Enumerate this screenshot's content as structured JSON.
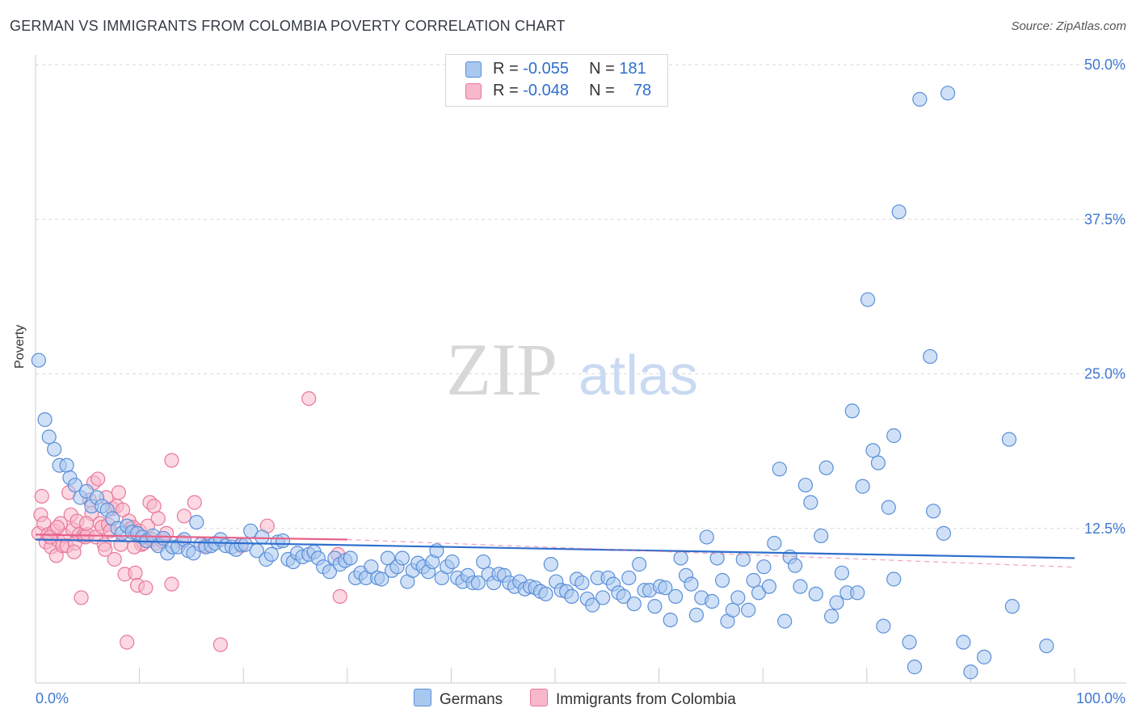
{
  "header": {
    "title": "GERMAN VS IMMIGRANTS FROM COLOMBIA POVERTY CORRELATION CHART",
    "source": "Source: ZipAtlas.com"
  },
  "watermark": {
    "zip": "ZIP",
    "atlas": "atlas"
  },
  "legend": {
    "items": [
      {
        "r_label": "R =",
        "r_value": "-0.055",
        "n_label": "N =",
        "n_value": "181"
      },
      {
        "r_label": "R =",
        "r_value": "-0.048",
        "n_label": "N =",
        "n_value": "78"
      }
    ]
  },
  "bottom_legend": {
    "germans": "Germans",
    "colombia": "Immigrants from Colombia"
  },
  "colors": {
    "germans_fill": "#a9c8f0",
    "germans_stroke": "#5b8fd8",
    "germans_line": "#2f6fcd",
    "colombia_fill": "#f7b8cb",
    "colombia_stroke": "#e8789a",
    "colombia_line": "#e8628a",
    "axis_label": "#3f78d1",
    "grid": "#d9d9d9"
  },
  "chart_data": {
    "type": "scatter",
    "title": "GERMAN VS IMMIGRANTS FROM COLOMBIA POVERTY CORRELATION CHART",
    "xlabel": "",
    "ylabel": "Poverty",
    "xlim": [
      0,
      100
    ],
    "ylim": [
      0,
      50
    ],
    "x_ticks": [
      "0.0%",
      "100.0%"
    ],
    "y_ticks": [
      {
        "value": 12.5,
        "label": "12.5%"
      },
      {
        "value": 25.0,
        "label": "25.0%"
      },
      {
        "value": 37.5,
        "label": "37.5%"
      },
      {
        "value": 50.0,
        "label": "50.0%"
      }
    ],
    "grid": "horizontal dashed",
    "series": [
      {
        "name": "Germans",
        "r": -0.055,
        "n": 181,
        "trend": {
          "x": [
            0,
            100
          ],
          "y": [
            11.6,
            10.1
          ]
        },
        "points": [
          [
            0.3,
            26.1
          ],
          [
            0.9,
            21.3
          ],
          [
            1.3,
            19.9
          ],
          [
            1.8,
            18.9
          ],
          [
            2.3,
            17.6
          ],
          [
            3.0,
            17.6
          ],
          [
            3.3,
            16.6
          ],
          [
            3.8,
            16.0
          ],
          [
            4.3,
            15.0
          ],
          [
            4.9,
            15.5
          ],
          [
            5.4,
            14.3
          ],
          [
            5.9,
            15.0
          ],
          [
            6.4,
            14.3
          ],
          [
            6.9,
            14.0
          ],
          [
            7.4,
            13.3
          ],
          [
            7.9,
            12.5
          ],
          [
            8.3,
            12.1
          ],
          [
            8.8,
            12.7
          ],
          [
            9.3,
            12.2
          ],
          [
            9.8,
            12.1
          ],
          [
            10.3,
            11.8
          ],
          [
            10.7,
            11.5
          ],
          [
            11.3,
            11.9
          ],
          [
            11.8,
            11.1
          ],
          [
            12.3,
            11.7
          ],
          [
            12.7,
            10.5
          ],
          [
            13.2,
            11.0
          ],
          [
            13.7,
            11.0
          ],
          [
            14.3,
            11.6
          ],
          [
            14.7,
            10.7
          ],
          [
            15.2,
            10.5
          ],
          [
            15.5,
            13.0
          ],
          [
            15.9,
            11.2
          ],
          [
            16.4,
            11.0
          ],
          [
            16.9,
            11.1
          ],
          [
            17.3,
            11.3
          ],
          [
            17.8,
            11.6
          ],
          [
            18.3,
            11.1
          ],
          [
            18.9,
            11.0
          ],
          [
            19.3,
            10.8
          ],
          [
            19.8,
            11.2
          ],
          [
            20.2,
            11.2
          ],
          [
            20.7,
            12.3
          ],
          [
            21.3,
            10.7
          ],
          [
            21.8,
            11.8
          ],
          [
            22.2,
            10.0
          ],
          [
            22.7,
            10.4
          ],
          [
            23.3,
            11.4
          ],
          [
            23.8,
            11.5
          ],
          [
            24.3,
            10.0
          ],
          [
            24.8,
            9.8
          ],
          [
            25.2,
            10.5
          ],
          [
            25.7,
            10.2
          ],
          [
            26.3,
            10.4
          ],
          [
            26.8,
            10.6
          ],
          [
            27.2,
            10.1
          ],
          [
            27.7,
            9.4
          ],
          [
            28.3,
            9.0
          ],
          [
            28.8,
            10.1
          ],
          [
            29.3,
            9.6
          ],
          [
            29.8,
            9.9
          ],
          [
            30.3,
            10.1
          ],
          [
            30.8,
            8.5
          ],
          [
            31.3,
            8.9
          ],
          [
            31.8,
            8.5
          ],
          [
            32.3,
            9.4
          ],
          [
            32.9,
            8.5
          ],
          [
            33.3,
            8.4
          ],
          [
            33.9,
            10.1
          ],
          [
            34.3,
            9.1
          ],
          [
            34.8,
            9.4
          ],
          [
            35.3,
            10.1
          ],
          [
            35.8,
            8.2
          ],
          [
            36.3,
            9.1
          ],
          [
            36.8,
            9.7
          ],
          [
            37.3,
            9.4
          ],
          [
            37.8,
            9.0
          ],
          [
            38.2,
            9.8
          ],
          [
            38.6,
            10.7
          ],
          [
            39.1,
            8.5
          ],
          [
            39.6,
            9.4
          ],
          [
            40.1,
            9.8
          ],
          [
            40.6,
            8.5
          ],
          [
            41.1,
            8.2
          ],
          [
            41.6,
            8.7
          ],
          [
            42.1,
            8.1
          ],
          [
            42.6,
            8.1
          ],
          [
            43.1,
            9.8
          ],
          [
            43.6,
            8.8
          ],
          [
            44.1,
            8.1
          ],
          [
            44.6,
            8.8
          ],
          [
            45.1,
            8.7
          ],
          [
            45.6,
            8.1
          ],
          [
            46.1,
            7.8
          ],
          [
            46.6,
            8.2
          ],
          [
            47.1,
            7.6
          ],
          [
            47.6,
            7.8
          ],
          [
            48.1,
            7.7
          ],
          [
            48.6,
            7.4
          ],
          [
            49.1,
            7.2
          ],
          [
            49.6,
            9.6
          ],
          [
            50.1,
            8.2
          ],
          [
            50.6,
            7.5
          ],
          [
            51.1,
            7.4
          ],
          [
            51.6,
            7.0
          ],
          [
            52.1,
            8.4
          ],
          [
            52.6,
            8.1
          ],
          [
            53.1,
            6.8
          ],
          [
            53.6,
            6.3
          ],
          [
            54.1,
            8.5
          ],
          [
            54.6,
            6.9
          ],
          [
            55.1,
            8.5
          ],
          [
            55.6,
            8.0
          ],
          [
            56.1,
            7.3
          ],
          [
            56.6,
            7.0
          ],
          [
            57.1,
            8.5
          ],
          [
            57.6,
            6.4
          ],
          [
            58.1,
            9.6
          ],
          [
            58.6,
            7.5
          ],
          [
            59.1,
            7.5
          ],
          [
            59.6,
            6.2
          ],
          [
            60.1,
            7.8
          ],
          [
            60.6,
            7.7
          ],
          [
            61.1,
            5.1
          ],
          [
            61.6,
            7.0
          ],
          [
            62.1,
            10.1
          ],
          [
            62.6,
            8.7
          ],
          [
            63.1,
            8.0
          ],
          [
            63.6,
            5.5
          ],
          [
            64.1,
            6.9
          ],
          [
            64.6,
            11.8
          ],
          [
            65.1,
            6.6
          ],
          [
            65.6,
            10.1
          ],
          [
            66.1,
            8.3
          ],
          [
            66.6,
            5.0
          ],
          [
            67.1,
            5.9
          ],
          [
            67.6,
            6.9
          ],
          [
            68.1,
            10.0
          ],
          [
            68.6,
            5.9
          ],
          [
            69.1,
            8.3
          ],
          [
            69.6,
            7.3
          ],
          [
            70.1,
            9.4
          ],
          [
            70.6,
            7.8
          ],
          [
            71.1,
            11.3
          ],
          [
            71.6,
            17.3
          ],
          [
            72.1,
            5.0
          ],
          [
            72.6,
            10.2
          ],
          [
            73.1,
            9.5
          ],
          [
            73.6,
            7.8
          ],
          [
            74.1,
            16.0
          ],
          [
            74.6,
            14.6
          ],
          [
            75.1,
            7.2
          ],
          [
            75.6,
            11.9
          ],
          [
            76.1,
            17.4
          ],
          [
            76.6,
            5.4
          ],
          [
            77.1,
            6.5
          ],
          [
            77.6,
            8.9
          ],
          [
            78.1,
            7.3
          ],
          [
            78.6,
            22.0
          ],
          [
            79.1,
            7.3
          ],
          [
            79.6,
            15.9
          ],
          [
            80.1,
            31.0
          ],
          [
            80.6,
            18.8
          ],
          [
            81.1,
            17.8
          ],
          [
            81.6,
            4.6
          ],
          [
            82.1,
            14.2
          ],
          [
            82.6,
            8.4
          ],
          [
            82.6,
            20.0
          ],
          [
            83.1,
            38.1
          ],
          [
            84.1,
            3.3
          ],
          [
            84.6,
            1.3
          ],
          [
            85.1,
            47.2
          ],
          [
            86.1,
            26.4
          ],
          [
            86.4,
            13.9
          ],
          [
            87.4,
            12.1
          ],
          [
            87.8,
            47.7
          ],
          [
            89.3,
            3.3
          ],
          [
            90.0,
            0.9
          ],
          [
            91.3,
            2.1
          ],
          [
            93.7,
            19.7
          ],
          [
            94.0,
            6.2
          ],
          [
            97.3,
            3.0
          ]
        ]
      },
      {
        "name": "Immigrants from Colombia",
        "r": -0.048,
        "n": 78,
        "trend": {
          "x": [
            0,
            30
          ],
          "y": [
            12.0,
            11.6
          ]
        },
        "points": [
          [
            0.3,
            12.1
          ],
          [
            0.5,
            13.6
          ],
          [
            0.6,
            15.1
          ],
          [
            0.8,
            12.9
          ],
          [
            1.0,
            11.4
          ],
          [
            1.2,
            12.0
          ],
          [
            1.5,
            11.0
          ],
          [
            1.8,
            12.3
          ],
          [
            2.0,
            10.3
          ],
          [
            2.2,
            11.5
          ],
          [
            2.4,
            12.9
          ],
          [
            2.6,
            11.1
          ],
          [
            2.8,
            11.9
          ],
          [
            3.0,
            11.1
          ],
          [
            3.2,
            15.4
          ],
          [
            3.4,
            13.6
          ],
          [
            3.6,
            12.4
          ],
          [
            3.8,
            11.3
          ],
          [
            4.0,
            13.1
          ],
          [
            4.2,
            12.0
          ],
          [
            4.4,
            6.9
          ],
          [
            4.6,
            11.9
          ],
          [
            4.8,
            11.8
          ],
          [
            5.0,
            12.0
          ],
          [
            5.2,
            14.8
          ],
          [
            5.4,
            13.7
          ],
          [
            5.6,
            16.2
          ],
          [
            5.8,
            11.8
          ],
          [
            6.0,
            16.5
          ],
          [
            6.2,
            12.9
          ],
          [
            6.4,
            12.6
          ],
          [
            6.6,
            11.2
          ],
          [
            6.8,
            15.0
          ],
          [
            7.0,
            12.8
          ],
          [
            7.2,
            12.3
          ],
          [
            7.4,
            14.1
          ],
          [
            7.6,
            10.0
          ],
          [
            7.8,
            14.3
          ],
          [
            8.0,
            15.4
          ],
          [
            8.2,
            11.2
          ],
          [
            8.4,
            14.0
          ],
          [
            8.6,
            8.8
          ],
          [
            8.8,
            3.3
          ],
          [
            9.0,
            13.1
          ],
          [
            9.2,
            12.5
          ],
          [
            9.4,
            12.6
          ],
          [
            9.6,
            8.9
          ],
          [
            9.8,
            7.9
          ],
          [
            10.0,
            12.3
          ],
          [
            10.2,
            11.2
          ],
          [
            10.4,
            11.3
          ],
          [
            10.6,
            7.7
          ],
          [
            10.8,
            12.7
          ],
          [
            11.0,
            14.6
          ],
          [
            11.2,
            11.6
          ],
          [
            11.4,
            14.3
          ],
          [
            11.6,
            11.3
          ],
          [
            11.8,
            13.3
          ],
          [
            12.2,
            11.5
          ],
          [
            12.6,
            12.1
          ],
          [
            13.1,
            8.0
          ],
          [
            13.1,
            18.0
          ],
          [
            14.1,
            11.4
          ],
          [
            14.3,
            13.5
          ],
          [
            15.3,
            14.6
          ],
          [
            16.3,
            11.1
          ],
          [
            17.8,
            3.1
          ],
          [
            19.8,
            11.1
          ],
          [
            22.3,
            12.7
          ],
          [
            26.3,
            23.0
          ],
          [
            29.1,
            10.4
          ],
          [
            29.3,
            7.0
          ],
          [
            1.4,
            11.8
          ],
          [
            2.1,
            12.6
          ],
          [
            3.7,
            10.6
          ],
          [
            4.9,
            12.9
          ],
          [
            6.7,
            10.8
          ],
          [
            9.5,
            11.0
          ]
        ]
      }
    ]
  }
}
